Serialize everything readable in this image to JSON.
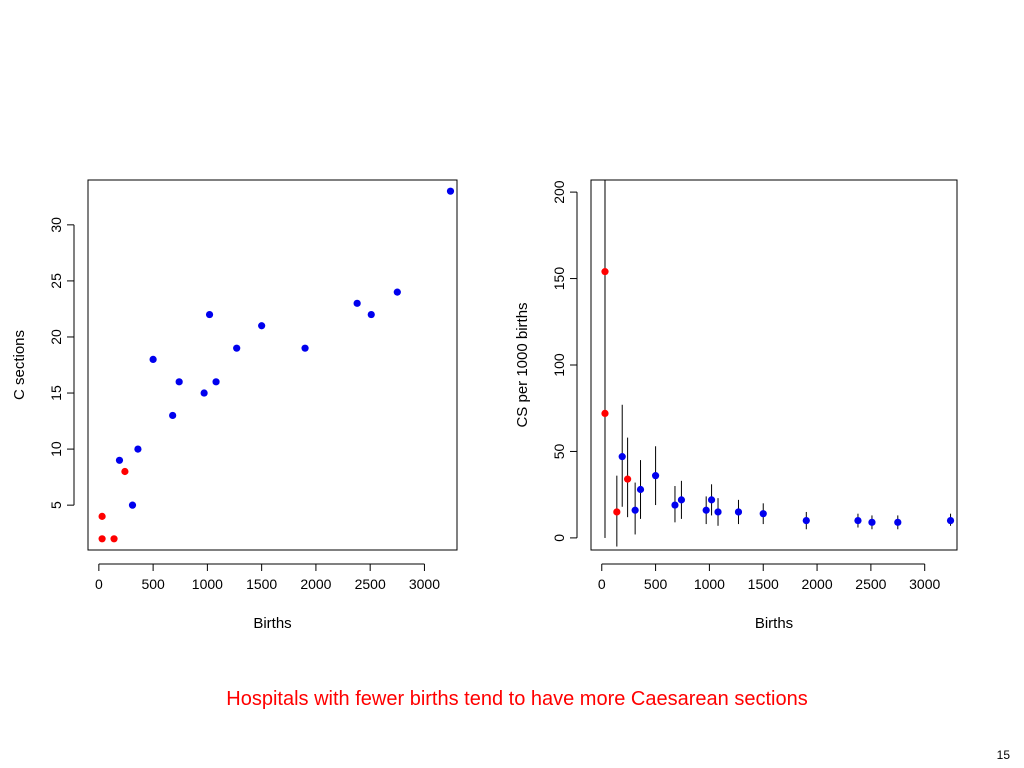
{
  "caption": "Hospitals with fewer births tend to have more Caesarean sections",
  "page_number": "15",
  "colors": {
    "small_hospital": "#ff0000",
    "other_hospital": "#0000ee",
    "error_bar": "#000000"
  },
  "chart_data": [
    {
      "type": "scatter",
      "title": "",
      "xlabel": "Births",
      "ylabel": "C sections",
      "xlim": [
        -100,
        3300
      ],
      "ylim": [
        1,
        34
      ],
      "xticks": [
        0,
        500,
        1000,
        1500,
        2000,
        2500,
        3000
      ],
      "yticks": [
        5,
        10,
        15,
        20,
        25,
        30
      ],
      "grid": false,
      "points": [
        {
          "x": 30,
          "y": 4,
          "group": "small"
        },
        {
          "x": 30,
          "y": 2,
          "group": "small"
        },
        {
          "x": 140,
          "y": 2,
          "group": "small"
        },
        {
          "x": 240,
          "y": 8,
          "group": "small"
        },
        {
          "x": 190,
          "y": 9,
          "group": "other"
        },
        {
          "x": 310,
          "y": 5,
          "group": "other"
        },
        {
          "x": 360,
          "y": 10,
          "group": "other"
        },
        {
          "x": 500,
          "y": 18,
          "group": "other"
        },
        {
          "x": 680,
          "y": 13,
          "group": "other"
        },
        {
          "x": 740,
          "y": 16,
          "group": "other"
        },
        {
          "x": 970,
          "y": 15,
          "group": "other"
        },
        {
          "x": 1020,
          "y": 22,
          "group": "other"
        },
        {
          "x": 1080,
          "y": 16,
          "group": "other"
        },
        {
          "x": 1270,
          "y": 19,
          "group": "other"
        },
        {
          "x": 1500,
          "y": 21,
          "group": "other"
        },
        {
          "x": 1900,
          "y": 19,
          "group": "other"
        },
        {
          "x": 2380,
          "y": 23,
          "group": "other"
        },
        {
          "x": 2510,
          "y": 22,
          "group": "other"
        },
        {
          "x": 2750,
          "y": 24,
          "group": "other"
        },
        {
          "x": 3240,
          "y": 33,
          "group": "other"
        }
      ]
    },
    {
      "type": "scatter",
      "title": "",
      "xlabel": "Births",
      "ylabel": "CS per 1000 births",
      "xlim": [
        -100,
        3300
      ],
      "ylim": [
        -7,
        207
      ],
      "xticks": [
        0,
        500,
        1000,
        1500,
        2000,
        2500,
        3000
      ],
      "yticks": [
        0,
        50,
        100,
        150,
        200
      ],
      "grid": false,
      "points": [
        {
          "x": 30,
          "y": 154,
          "lo": 0,
          "hi": 207,
          "group": "small"
        },
        {
          "x": 30,
          "y": 72,
          "lo": 0,
          "hi": 207,
          "group": "small"
        },
        {
          "x": 140,
          "y": 15,
          "lo": -5,
          "hi": 36,
          "group": "small"
        },
        {
          "x": 240,
          "y": 34,
          "lo": 12,
          "hi": 58,
          "group": "small"
        },
        {
          "x": 190,
          "y": 47,
          "lo": 18,
          "hi": 77,
          "group": "other"
        },
        {
          "x": 310,
          "y": 16,
          "lo": 2,
          "hi": 32,
          "group": "other"
        },
        {
          "x": 360,
          "y": 28,
          "lo": 11,
          "hi": 45,
          "group": "other"
        },
        {
          "x": 500,
          "y": 36,
          "lo": 19,
          "hi": 53,
          "group": "other"
        },
        {
          "x": 680,
          "y": 19,
          "lo": 9,
          "hi": 30,
          "group": "other"
        },
        {
          "x": 740,
          "y": 22,
          "lo": 11,
          "hi": 33,
          "group": "other"
        },
        {
          "x": 970,
          "y": 16,
          "lo": 8,
          "hi": 24,
          "group": "other"
        },
        {
          "x": 1020,
          "y": 22,
          "lo": 13,
          "hi": 31,
          "group": "other"
        },
        {
          "x": 1080,
          "y": 15,
          "lo": 7,
          "hi": 23,
          "group": "other"
        },
        {
          "x": 1270,
          "y": 15,
          "lo": 8,
          "hi": 22,
          "group": "other"
        },
        {
          "x": 1500,
          "y": 14,
          "lo": 8,
          "hi": 20,
          "group": "other"
        },
        {
          "x": 1900,
          "y": 10,
          "lo": 5,
          "hi": 15,
          "group": "other"
        },
        {
          "x": 2380,
          "y": 10,
          "lo": 6,
          "hi": 14,
          "group": "other"
        },
        {
          "x": 2510,
          "y": 9,
          "lo": 5,
          "hi": 13,
          "group": "other"
        },
        {
          "x": 2750,
          "y": 9,
          "lo": 5,
          "hi": 13,
          "group": "other"
        },
        {
          "x": 3240,
          "y": 10,
          "lo": 7,
          "hi": 14,
          "group": "other"
        }
      ]
    }
  ]
}
